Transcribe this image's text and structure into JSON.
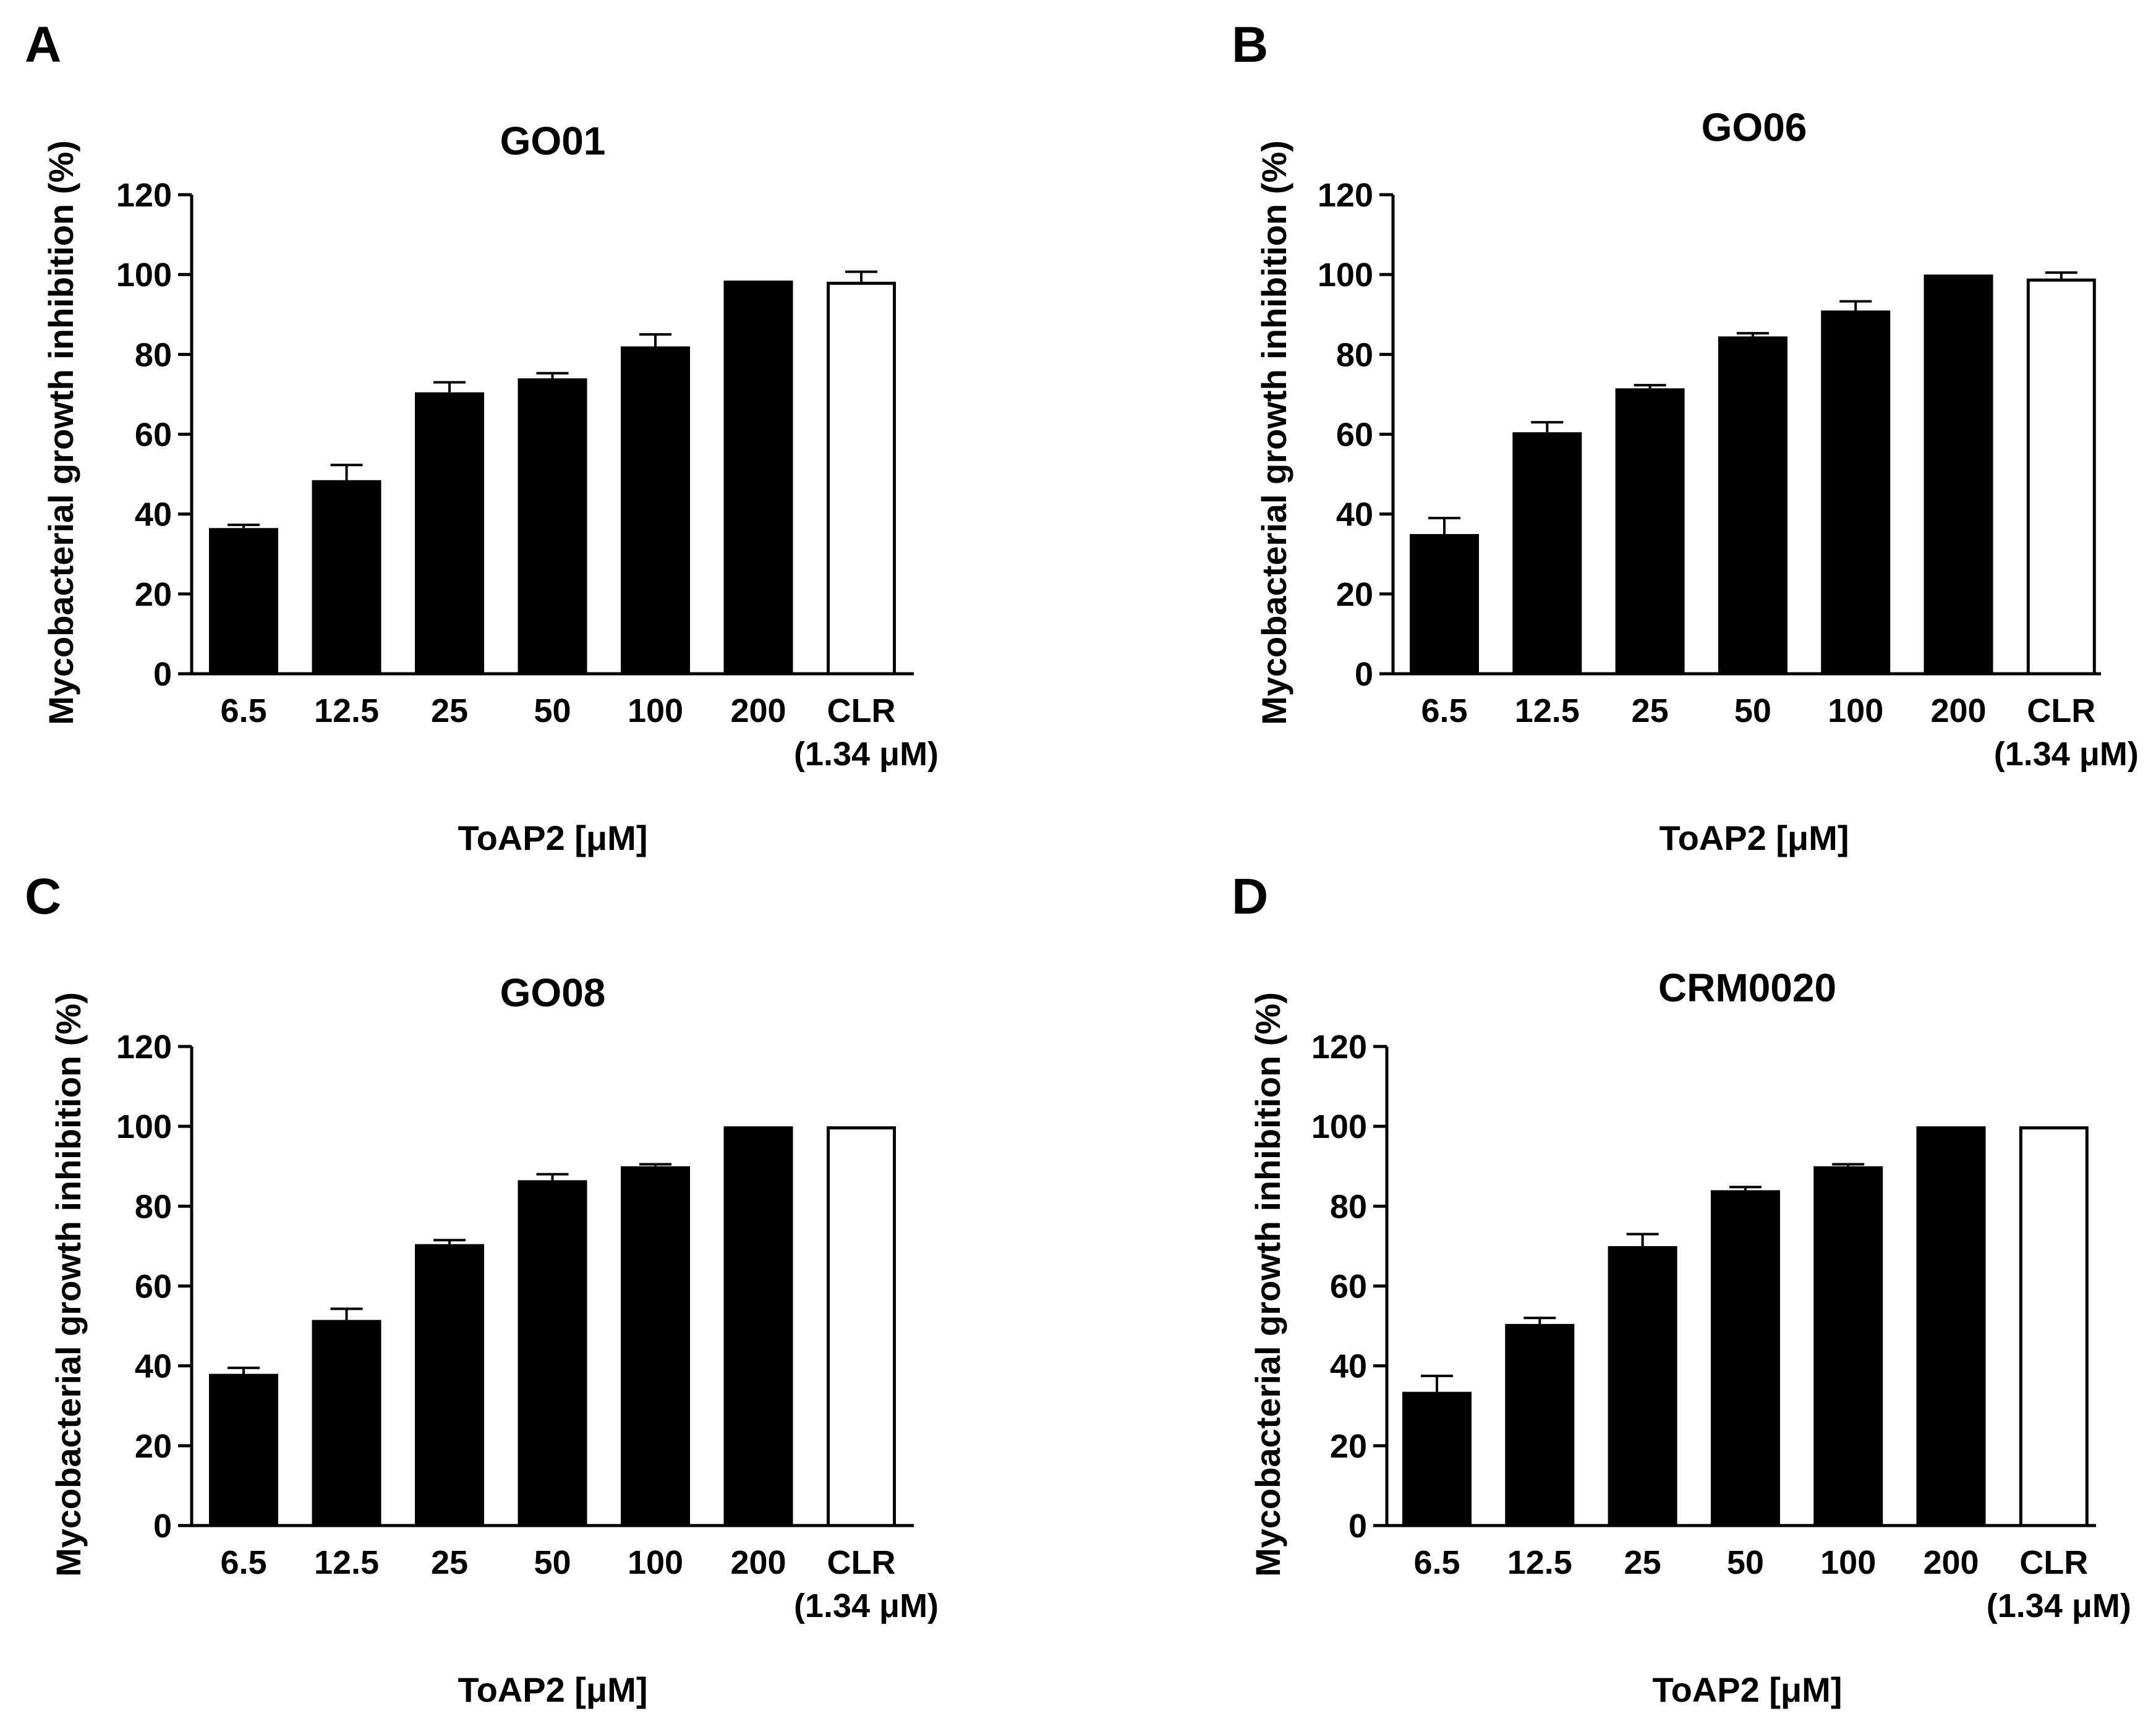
{
  "figure": {
    "panels": [
      "A",
      "B",
      "C",
      "D"
    ]
  },
  "chart_data": [
    {
      "type": "bar",
      "panel_label": "A",
      "title": "GO01",
      "categories": [
        "6.5",
        "12.5",
        "25",
        "50",
        "100",
        "200",
        "CLR"
      ],
      "category_sublabels": [
        "",
        "",
        "",
        "",
        "",
        "",
        "(1.34 μM)"
      ],
      "values": [
        36.5,
        48.5,
        70.5,
        74,
        82,
        98.5,
        98.2
      ],
      "errors": [
        0.8,
        3.8,
        2.5,
        1.3,
        3,
        0,
        2.5
      ],
      "bar_colors": [
        "#000000",
        "#000000",
        "#000000",
        "#000000",
        "#000000",
        "#000000",
        "#ffffff"
      ],
      "xlabel": "ToAP2  [μM]",
      "ylabel": "Mycobacterial growth inhibition (%)",
      "ylim": [
        0,
        120
      ],
      "yticks": [
        "0",
        "20",
        "40",
        "60",
        "80",
        "100",
        "120"
      ]
    },
    {
      "type": "bar",
      "panel_label": "B",
      "title": "GO06",
      "categories": [
        "6.5",
        "12.5",
        "25",
        "50",
        "100",
        "200",
        "CLR"
      ],
      "category_sublabels": [
        "",
        "",
        "",
        "",
        "",
        "",
        "(1.34 μM)"
      ],
      "values": [
        35,
        60.5,
        71.5,
        84.5,
        91,
        100,
        99
      ],
      "errors": [
        4,
        2.5,
        0.8,
        0.8,
        2.3,
        0,
        1.5
      ],
      "bar_colors": [
        "#000000",
        "#000000",
        "#000000",
        "#000000",
        "#000000",
        "#000000",
        "#ffffff"
      ],
      "xlabel": "ToAP2  [μM]",
      "ylabel": "Mycobacterial growth inhibition (%)",
      "ylim": [
        0,
        120
      ],
      "yticks": [
        "0",
        "20",
        "40",
        "60",
        "80",
        "100",
        "120"
      ]
    },
    {
      "type": "bar",
      "panel_label": "C",
      "title": "GO08",
      "categories": [
        "6.5",
        "12.5",
        "25",
        "50",
        "100",
        "200",
        "CLR"
      ],
      "category_sublabels": [
        "",
        "",
        "",
        "",
        "",
        "",
        "(1.34 μM)"
      ],
      "values": [
        38,
        51.5,
        70.5,
        86.5,
        90,
        100,
        100
      ],
      "errors": [
        1.5,
        2.8,
        1,
        1.5,
        0.5,
        0,
        0
      ],
      "bar_colors": [
        "#000000",
        "#000000",
        "#000000",
        "#000000",
        "#000000",
        "#000000",
        "#ffffff"
      ],
      "xlabel": "ToAP2  [μM]",
      "ylabel": "Mycobacterial growth inhibition (%)",
      "ylim": [
        0,
        120
      ],
      "yticks": [
        "0",
        "20",
        "40",
        "60",
        "80",
        "100",
        "120"
      ]
    },
    {
      "type": "bar",
      "panel_label": "D",
      "title": "CRM0020",
      "categories": [
        "6.5",
        "12.5",
        "25",
        "50",
        "100",
        "200",
        "CLR"
      ],
      "category_sublabels": [
        "",
        "",
        "",
        "",
        "",
        "",
        "(1.34 μM)"
      ],
      "values": [
        33.5,
        50.5,
        70,
        84,
        90,
        100,
        100
      ],
      "errors": [
        4,
        1.5,
        3,
        0.8,
        0.5,
        0,
        0
      ],
      "bar_colors": [
        "#000000",
        "#000000",
        "#000000",
        "#000000",
        "#000000",
        "#000000",
        "#ffffff"
      ],
      "xlabel": "ToAP2  [μM]",
      "ylabel": "Mycobacterial growth inhibition (%)",
      "ylim": [
        0,
        120
      ],
      "yticks": [
        "0",
        "20",
        "40",
        "60",
        "80",
        "100",
        "120"
      ]
    }
  ]
}
